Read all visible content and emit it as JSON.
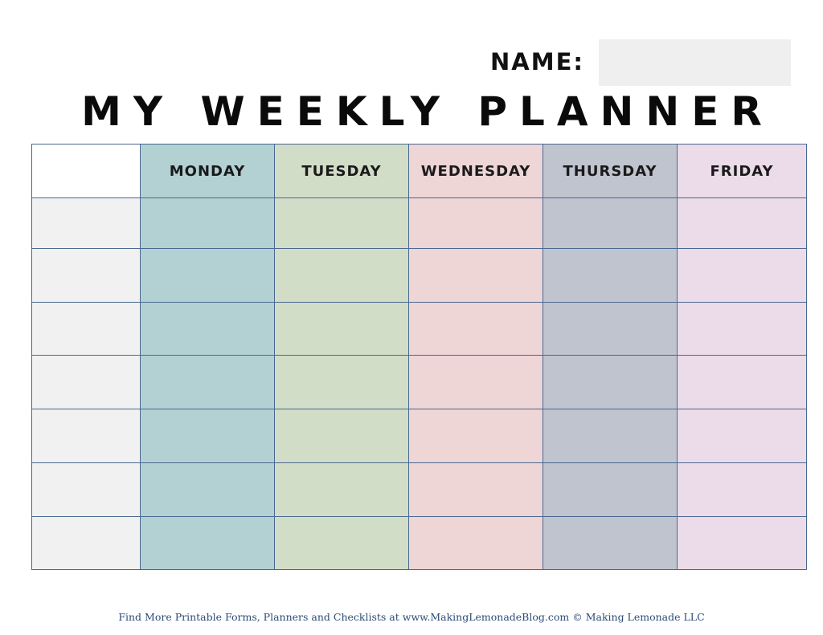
{
  "name_label": "NAME:",
  "title": "MY WEEKLY PLANNER",
  "days": [
    {
      "label": "MONDAY",
      "color": "#b3d1d2"
    },
    {
      "label": "TUESDAY",
      "color": "#d2ddc8"
    },
    {
      "label": "WEDNESDAY",
      "color": "#eed5d6"
    },
    {
      "label": "THURSDAY",
      "color": "#c0c4ce"
    },
    {
      "label": "FRIDAY",
      "color": "#ecdbe8"
    }
  ],
  "time_column_color": "#f1f1f1",
  "border_color": "#4a6890",
  "row_count": 7,
  "footer": "Find More Printable Forms, Planners and Checklists at www.MakingLemonadeBlog.com © Making Lemonade LLC"
}
